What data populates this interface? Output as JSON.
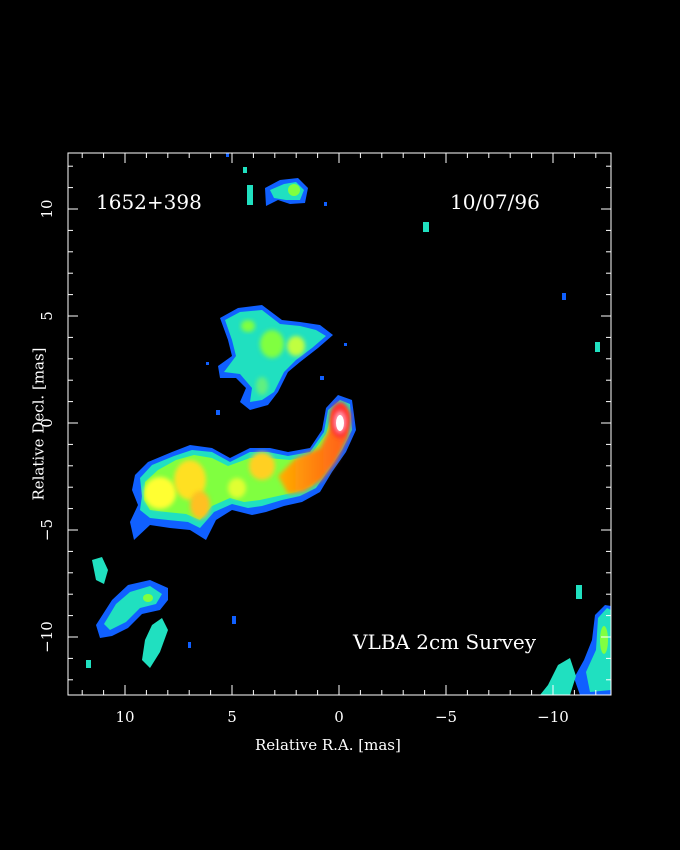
{
  "image": {
    "source_label": "1652+398",
    "date_label": "10/07/96",
    "survey_label": "VLBA 2cm Survey",
    "x_axis_label": "Relative R.A. [mas]",
    "y_axis_label": "Relative Decl. [mas]",
    "x_ticks": [
      "10",
      "5",
      "0",
      "−5",
      "−10"
    ],
    "y_ticks": [
      "10",
      "5",
      "0",
      "−5",
      "−10"
    ],
    "colors": {
      "background": "#000000",
      "frame": "#ffffff",
      "low": "#1060ff",
      "mid_low": "#20e0c0",
      "mid": "#80ff40",
      "mid_high": "#ffff30",
      "high": "#ff8020",
      "peak": "#ff3030",
      "core": "#ffffff"
    }
  }
}
